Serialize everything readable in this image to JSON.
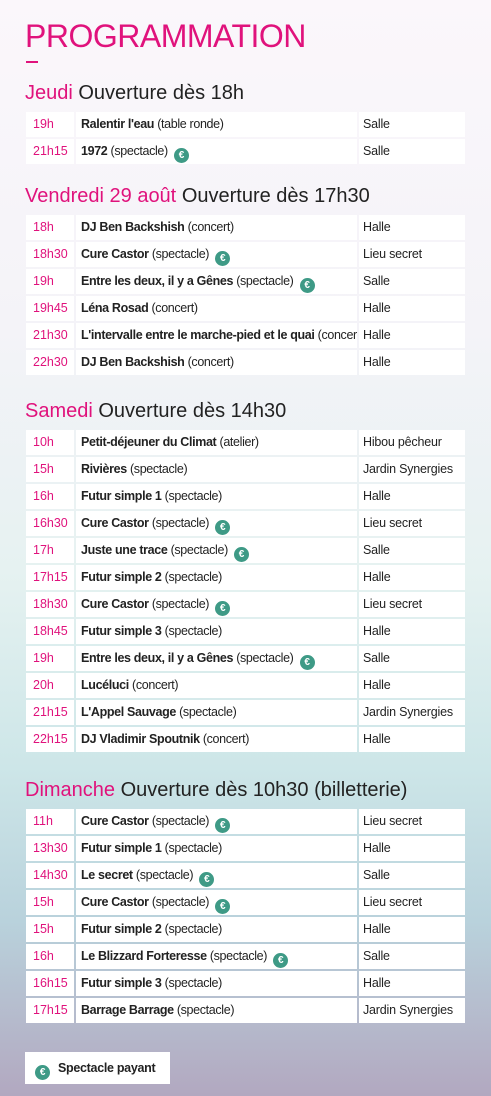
{
  "title": "PROGRAMMATION",
  "euro_symbol": "€",
  "days": [
    {
      "name": "Jeudi",
      "opening": "Ouverture dès 18h",
      "rows": [
        {
          "time": "19h",
          "title": "Ralentir l'eau",
          "type": "(table ronde)",
          "paid": false,
          "place": "Salle"
        },
        {
          "time": "21h15",
          "title": "1972",
          "type": "(spectacle)",
          "paid": true,
          "place": "Salle"
        }
      ]
    },
    {
      "name": "Vendredi 29 août",
      "opening": "Ouverture dès 17h30",
      "rows": [
        {
          "time": "18h",
          "title": "DJ Ben Backshish",
          "type": "(concert)",
          "paid": false,
          "place": "Halle"
        },
        {
          "time": "18h30",
          "title": "Cure Castor",
          "type": "(spectacle)",
          "paid": true,
          "place": "Lieu secret"
        },
        {
          "time": "19h",
          "title": "Entre les deux, il y a Gênes",
          "type": "(spectacle)",
          "paid": true,
          "place": "Salle"
        },
        {
          "time": "19h45",
          "title": "Léna Rosad",
          "type": "(concert)",
          "paid": false,
          "place": "Halle"
        },
        {
          "time": "21h30",
          "title": "L'intervalle entre le marche-pied et le quai",
          "type": "(concert)",
          "paid": false,
          "place": "Halle"
        },
        {
          "time": "22h30",
          "title": "DJ Ben Backshish",
          "type": "(concert)",
          "paid": false,
          "place": "Halle"
        }
      ]
    },
    {
      "name": "Samedi",
      "opening": "Ouverture dès 14h30",
      "rows": [
        {
          "time": "10h",
          "title": "Petit-déjeuner du Climat",
          "type": "(atelier)",
          "paid": false,
          "place": "Hibou pêcheur"
        },
        {
          "time": "15h",
          "title": "Rivières",
          "type": "(spectacle)",
          "paid": false,
          "place": "Jardin Synergies"
        },
        {
          "time": "16h",
          "title": "Futur simple 1",
          "type": "(spectacle)",
          "paid": false,
          "place": "Halle"
        },
        {
          "time": "16h30",
          "title": "Cure Castor",
          "type": "(spectacle)",
          "paid": true,
          "place": "Lieu secret"
        },
        {
          "time": "17h",
          "title": "Juste une trace",
          "type": "(spectacle)",
          "paid": true,
          "place": "Salle"
        },
        {
          "time": "17h15",
          "title": "Futur simple 2",
          "type": "(spectacle)",
          "paid": false,
          "place": "Halle"
        },
        {
          "time": "18h30",
          "title": "Cure Castor",
          "type": "(spectacle)",
          "paid": true,
          "place": "Lieu secret"
        },
        {
          "time": "18h45",
          "title": "Futur simple 3",
          "type": "(spectacle)",
          "paid": false,
          "place": "Halle"
        },
        {
          "time": "19h",
          "title": "Entre les deux, il y a Gênes",
          "type": "(spectacle)",
          "paid": true,
          "place": "Salle"
        },
        {
          "time": "20h",
          "title": "Lucéluci",
          "type": "(concert)",
          "paid": false,
          "place": "Halle"
        },
        {
          "time": "21h15",
          "title": "L'Appel Sauvage",
          "type": "(spectacle)",
          "paid": false,
          "place": "Jardin Synergies"
        },
        {
          "time": "22h15",
          "title": "DJ Vladimir Spoutnik",
          "type": "(concert)",
          "paid": false,
          "place": "Halle"
        }
      ]
    },
    {
      "name": "Dimanche",
      "opening": "Ouverture dès 10h30 (billetterie)",
      "rows": [
        {
          "time": "11h",
          "title": "Cure Castor",
          "type": "(spectacle)",
          "paid": true,
          "place": "Lieu secret"
        },
        {
          "time": "13h30",
          "title": "Futur simple 1",
          "type": "(spectacle)",
          "paid": false,
          "place": "Halle"
        },
        {
          "time": "14h30",
          "title": "Le secret",
          "type": "(spectacle)",
          "paid": true,
          "place": "Salle"
        },
        {
          "time": "15h",
          "title": "Cure Castor",
          "type": "(spectacle)",
          "paid": true,
          "place": "Lieu secret"
        },
        {
          "time": "15h",
          "title": "Futur simple 2",
          "type": "(spectacle)",
          "paid": false,
          "place": "Halle"
        },
        {
          "time": "16h",
          "title": "Le Blizzard Forteresse",
          "type": "(spectacle)",
          "paid": true,
          "place": "Salle"
        },
        {
          "time": "16h15",
          "title": "Futur simple 3",
          "type": "(spectacle)",
          "paid": false,
          "place": "Halle"
        },
        {
          "time": "17h15",
          "title": "Barrage Barrage",
          "type": "(spectacle)",
          "paid": false,
          "place": "Jardin Synergies"
        }
      ]
    }
  ],
  "legend": {
    "label": "Spectacle payant"
  },
  "colors": {
    "accent": "#e0127c",
    "euro_badge": "#3e9a86"
  },
  "icons": {
    "paid": "euro-icon"
  }
}
